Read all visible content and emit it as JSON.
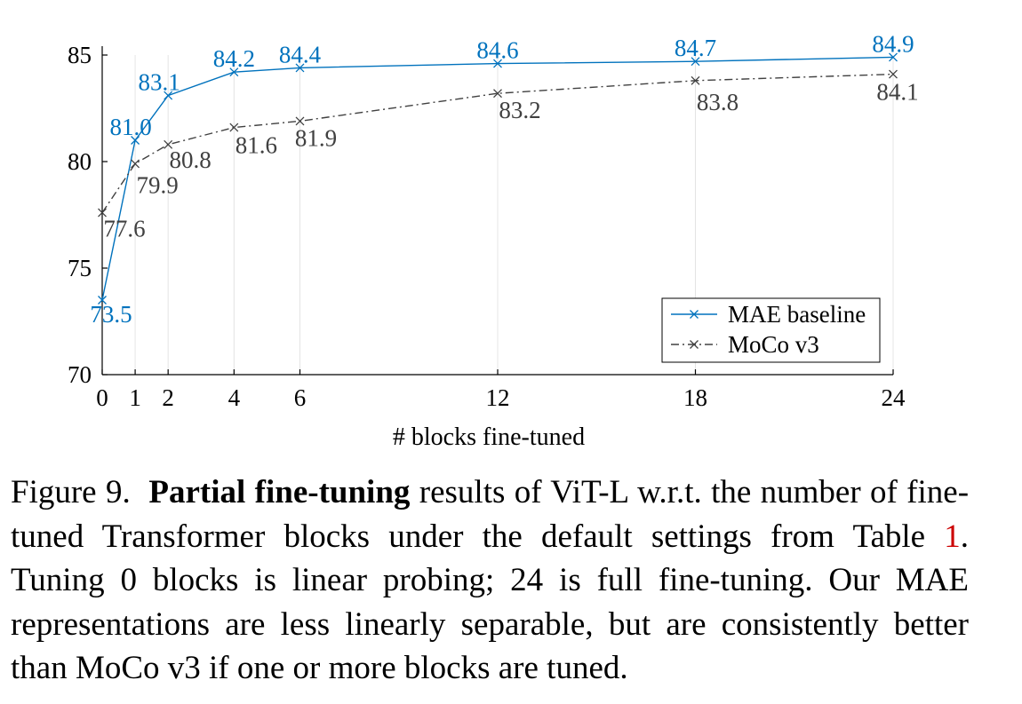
{
  "chart_data": {
    "type": "line",
    "xlabel": "# blocks fine-tuned",
    "ylabel": "",
    "xlim": [
      0,
      24
    ],
    "ylim": [
      70,
      85
    ],
    "x": [
      0,
      1,
      2,
      4,
      6,
      12,
      18,
      24
    ],
    "xticks": [
      "0",
      "1",
      "2",
      "4",
      "6",
      "12",
      "18",
      "24"
    ],
    "yticks": [
      70,
      75,
      80,
      85
    ],
    "grid": "vertical",
    "legend_position": "bottom-right",
    "series": [
      {
        "name": "MAE baseline",
        "color": "#0072bd",
        "line_style": "solid",
        "marker": "x",
        "values": [
          73.5,
          81.0,
          83.1,
          84.2,
          84.4,
          84.6,
          84.7,
          84.9
        ],
        "labels": [
          "73.5",
          "81.0",
          "83.1",
          "84.2",
          "84.4",
          "84.6",
          "84.7",
          "84.9"
        ]
      },
      {
        "name": "MoCo v3",
        "color": "#404040",
        "line_style": "dash-dot",
        "marker": "x",
        "values": [
          77.6,
          79.9,
          80.8,
          81.6,
          81.9,
          83.2,
          83.8,
          84.1
        ],
        "labels": [
          "77.6",
          "79.9",
          "80.8",
          "81.6",
          "81.9",
          "83.2",
          "83.8",
          "84.1"
        ]
      }
    ]
  },
  "caption": {
    "figure_label": "Figure 9.",
    "bold_title": "Partial fine-tuning",
    "text_1": "results of ViT-L w.r.t. the number of fine-tuned Transformer blocks under the default settings from Table",
    "ref": "1",
    "text_2": ". Tuning 0 blocks is linear probing; 24 is full fine-tuning. Our MAE representations are less linearly separable, but are consistently better than MoCo v3 if one or more blocks are tuned."
  }
}
